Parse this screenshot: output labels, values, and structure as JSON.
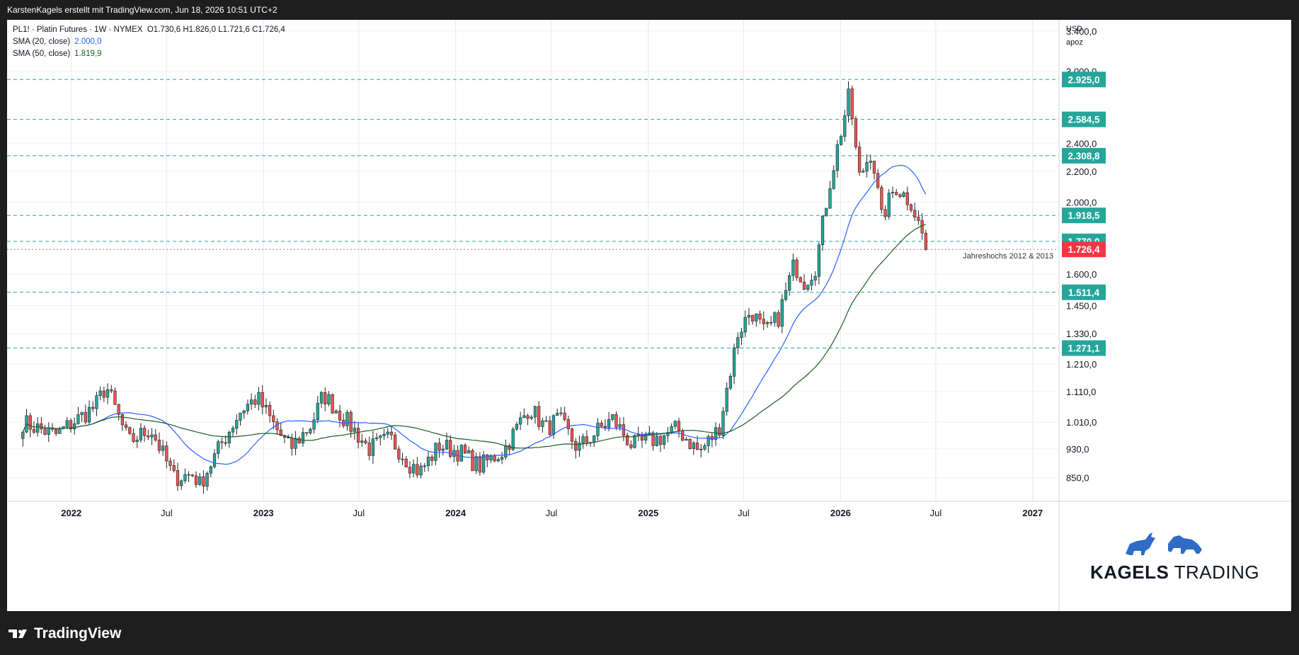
{
  "header": {
    "credit": "KarstenKagels erstellt mit TradingView.com, Jun 18, 2026 10:51 UTC+2"
  },
  "legend": {
    "instrument": "PL1! · Platin Futures · 1W · NYMEX",
    "ohlc": "O1.730,6  H1.826,0  L1.721,6  C1.726,4",
    "sma20_label": "SMA (20, close)",
    "sma20_value": "2.000,0",
    "sma50_label": "SMA (50, close)",
    "sma50_value": "1.819,9"
  },
  "scale": {
    "currency": "USD",
    "mode": "apoz"
  },
  "footer": {
    "logo_text": "TradingView"
  },
  "brand": {
    "part1": "KAGELS",
    "part2": "TRADING"
  },
  "colors": {
    "up": "#26a69a",
    "down": "#ef5350",
    "sma20": "#2962ff",
    "sma50": "#1b5e20",
    "level": "#26a69a",
    "last": "#f23645"
  },
  "chart_data": {
    "type": "candlestick",
    "timeframe": "1W",
    "xaxis_ticks": [
      "2022",
      "Jul",
      "2023",
      "Jul",
      "2024",
      "Jul",
      "2025",
      "Jul",
      "2026",
      "Jul",
      "2027"
    ],
    "yaxis_ticks": [
      "3.400,0",
      "3.000,0",
      "2.400,0",
      "2.200,0",
      "2.000,0",
      "1.600,0",
      "1.450,0",
      "1.330,0",
      "1.210,0",
      "1.110,0",
      "1.010,0",
      "930,0",
      "850,0"
    ],
    "yaxis_scale": "log",
    "levels": [
      {
        "value": 2925.0,
        "label": "2.925,0"
      },
      {
        "value": 2584.5,
        "label": "2.584,5"
      },
      {
        "value": 2308.8,
        "label": "2.308,8"
      },
      {
        "value": 1918.5,
        "label": "1.918,5"
      },
      {
        "value": 1770.0,
        "label": "1.770,0"
      },
      {
        "value": 1511.4,
        "label": "1.511,4"
      },
      {
        "value": 1271.1,
        "label": "1.271,1"
      }
    ],
    "last_price": {
      "value": 1726.4,
      "label": "1.726,4"
    },
    "annotation": "Jahreshochs 2012 & 2013",
    "keyframes": [
      {
        "date": "2021-10-01",
        "price": 1010
      },
      {
        "date": "2021-12-01",
        "price": 970
      },
      {
        "date": "2022-02-15",
        "price": 1060
      },
      {
        "date": "2022-03-08",
        "price": 1130
      },
      {
        "date": "2022-04-20",
        "price": 950
      },
      {
        "date": "2022-06-01",
        "price": 990
      },
      {
        "date": "2022-07-15",
        "price": 850
      },
      {
        "date": "2022-08-22",
        "price": 860
      },
      {
        "date": "2022-09-01",
        "price": 830
      },
      {
        "date": "2022-10-15",
        "price": 950
      },
      {
        "date": "2022-11-20",
        "price": 1050
      },
      {
        "date": "2022-12-20",
        "price": 1090
      },
      {
        "date": "2023-01-25",
        "price": 990
      },
      {
        "date": "2023-02-20",
        "price": 930
      },
      {
        "date": "2023-04-01",
        "price": 1000
      },
      {
        "date": "2023-04-25",
        "price": 1100
      },
      {
        "date": "2023-06-15",
        "price": 1000
      },
      {
        "date": "2023-07-20",
        "price": 930
      },
      {
        "date": "2023-08-30",
        "price": 960
      },
      {
        "date": "2023-10-05",
        "price": 890
      },
      {
        "date": "2023-10-25",
        "price": 865
      },
      {
        "date": "2023-12-01",
        "price": 940
      },
      {
        "date": "2024-01-10",
        "price": 920
      },
      {
        "date": "2024-02-15",
        "price": 880
      },
      {
        "date": "2024-04-01",
        "price": 925
      },
      {
        "date": "2024-05-20",
        "price": 1060
      },
      {
        "date": "2024-06-20",
        "price": 990
      },
      {
        "date": "2024-07-15",
        "price": 1020
      },
      {
        "date": "2024-08-20",
        "price": 930
      },
      {
        "date": "2024-10-01",
        "price": 990
      },
      {
        "date": "2024-10-25",
        "price": 1020
      },
      {
        "date": "2024-12-01",
        "price": 940
      },
      {
        "date": "2025-01-20",
        "price": 960
      },
      {
        "date": "2025-02-25",
        "price": 990
      },
      {
        "date": "2025-04-08",
        "price": 920
      },
      {
        "date": "2025-05-15",
        "price": 990
      },
      {
        "date": "2025-06-20",
        "price": 1330
      },
      {
        "date": "2025-07-15",
        "price": 1430
      },
      {
        "date": "2025-08-10",
        "price": 1330
      },
      {
        "date": "2025-09-05",
        "price": 1400
      },
      {
        "date": "2025-10-05",
        "price": 1650
      },
      {
        "date": "2025-10-25",
        "price": 1560
      },
      {
        "date": "2025-11-15",
        "price": 1640
      },
      {
        "date": "2025-12-10",
        "price": 2100
      },
      {
        "date": "2025-12-28",
        "price": 2400
      },
      {
        "date": "2026-01-18",
        "price": 2800
      },
      {
        "date": "2026-02-05",
        "price": 2150
      },
      {
        "date": "2026-03-01",
        "price": 2350
      },
      {
        "date": "2026-03-20",
        "price": 1900
      },
      {
        "date": "2026-04-15",
        "price": 2100
      },
      {
        "date": "2026-05-15",
        "price": 2000
      },
      {
        "date": "2026-06-15",
        "price": 1726.4
      }
    ]
  }
}
